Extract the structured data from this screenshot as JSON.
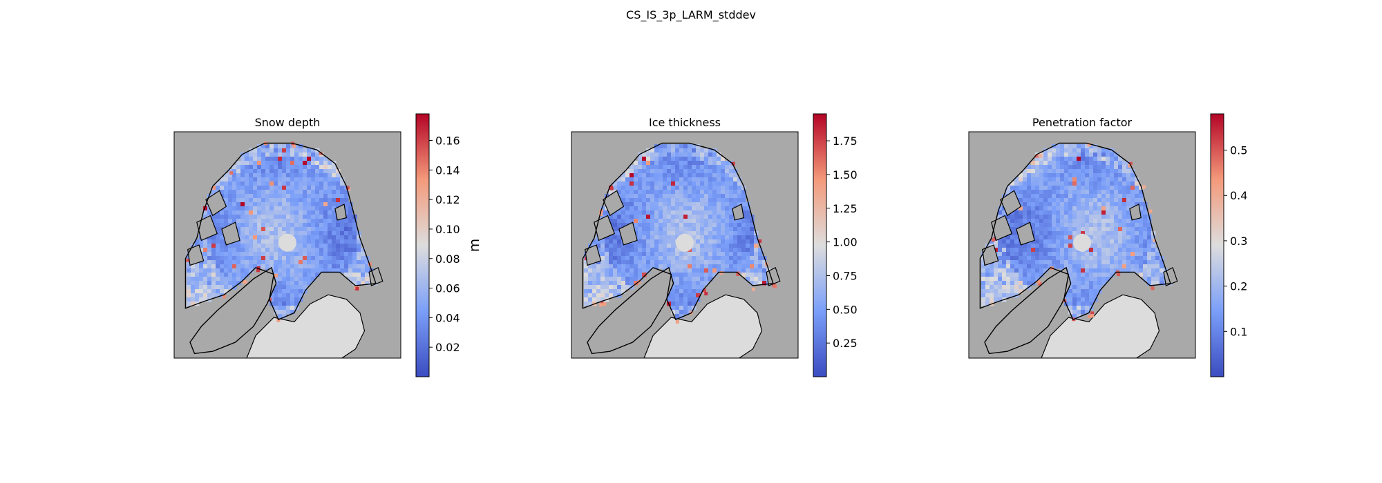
{
  "figure": {
    "suptitle": "CS_IS_3p_LARM_stddev"
  },
  "chart_data": [
    {
      "type": "heatmap",
      "title": "Snow depth",
      "colormap": "coolwarm",
      "colorbar": {
        "label": "m",
        "min": 0.0,
        "max": 0.178,
        "ticks": [
          0.02,
          0.04,
          0.06,
          0.08,
          0.1,
          0.12,
          0.14,
          0.16
        ],
        "tick_labels": [
          "0.02",
          "0.04",
          "0.06",
          "0.08",
          "0.10",
          "0.12",
          "0.14",
          "0.16"
        ]
      },
      "seed": 7
    },
    {
      "type": "heatmap",
      "title": "Ice thickness",
      "colormap": "coolwarm",
      "colorbar": {
        "label": "",
        "min": 0.0,
        "max": 1.95,
        "ticks": [
          0.25,
          0.5,
          0.75,
          1.0,
          1.25,
          1.5,
          1.75
        ],
        "tick_labels": [
          "0.25",
          "0.50",
          "0.75",
          "1.00",
          "1.25",
          "1.50",
          "1.75"
        ]
      },
      "seed": 19
    },
    {
      "type": "heatmap",
      "title": "Penetration factor",
      "colormap": "coolwarm",
      "colorbar": {
        "label": "",
        "min": 0.0,
        "max": 0.58,
        "ticks": [
          0.1,
          0.2,
          0.3,
          0.4,
          0.5
        ],
        "tick_labels": [
          "0.1",
          "0.2",
          "0.3",
          "0.4",
          "0.5"
        ]
      },
      "seed": 31
    }
  ],
  "colors": {
    "land": "#a9a9a9",
    "open_water": "#dcdcdc",
    "pole_hole": "#dcdcdc",
    "coastline": "#000000",
    "cmap_low": "#3b4cc0",
    "cmap_mid": "#dddddd",
    "cmap_high": "#b40426"
  }
}
